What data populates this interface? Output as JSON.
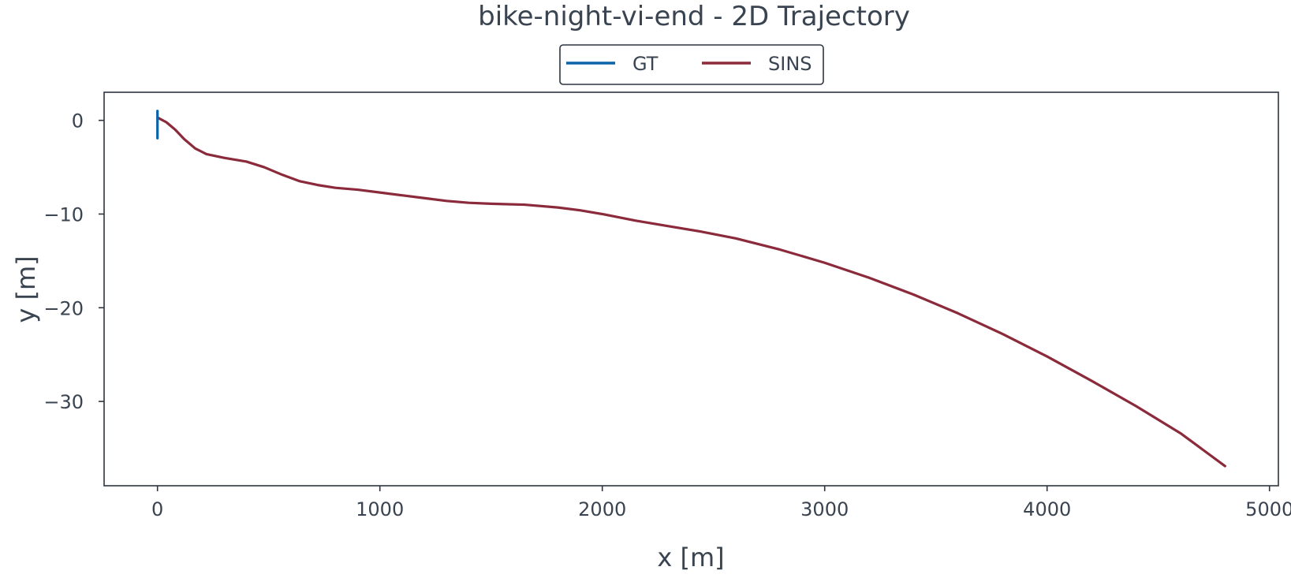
{
  "chart_data": {
    "type": "line",
    "title": "bike-night-vi-end - 2D Trajectory",
    "xlabel": "x [m]",
    "ylabel": "y [m]",
    "xlim": [
      -240,
      5040
    ],
    "ylim": [
      -39.0,
      3.0
    ],
    "x_ticks": [
      0,
      1000,
      2000,
      3000,
      4000,
      5000
    ],
    "y_ticks": [
      0,
      -10,
      -20,
      -30
    ],
    "y_tick_labels": [
      "0",
      "−10",
      "−20",
      "−30"
    ],
    "grid": false,
    "legend": {
      "placement": "top-center",
      "ncol": 2
    },
    "series": [
      {
        "name": "GT",
        "color": "#0b64a8",
        "x": [
          0,
          0,
          0,
          0,
          0
        ],
        "y": [
          1.0,
          0.3,
          -0.5,
          -1.2,
          -1.9
        ]
      },
      {
        "name": "SINS",
        "color": "#8b2a3b",
        "x": [
          0,
          40,
          80,
          120,
          170,
          220,
          300,
          400,
          480,
          560,
          640,
          720,
          800,
          900,
          1000,
          1100,
          1200,
          1300,
          1400,
          1500,
          1650,
          1800,
          1900,
          2000,
          2150,
          2300,
          2450,
          2600,
          2800,
          3000,
          3200,
          3400,
          3600,
          3800,
          4000,
          4200,
          4400,
          4600,
          4800
        ],
        "y": [
          0.3,
          -0.2,
          -1.0,
          -2.0,
          -3.0,
          -3.6,
          -4.0,
          -4.4,
          -5.0,
          -5.8,
          -6.5,
          -6.9,
          -7.2,
          -7.4,
          -7.7,
          -8.0,
          -8.3,
          -8.6,
          -8.8,
          -8.9,
          -9.0,
          -9.3,
          -9.6,
          -10.0,
          -10.7,
          -11.3,
          -11.9,
          -12.6,
          -13.8,
          -15.2,
          -16.8,
          -18.6,
          -20.6,
          -22.8,
          -25.2,
          -27.8,
          -30.5,
          -33.4,
          -36.9
        ]
      }
    ]
  }
}
